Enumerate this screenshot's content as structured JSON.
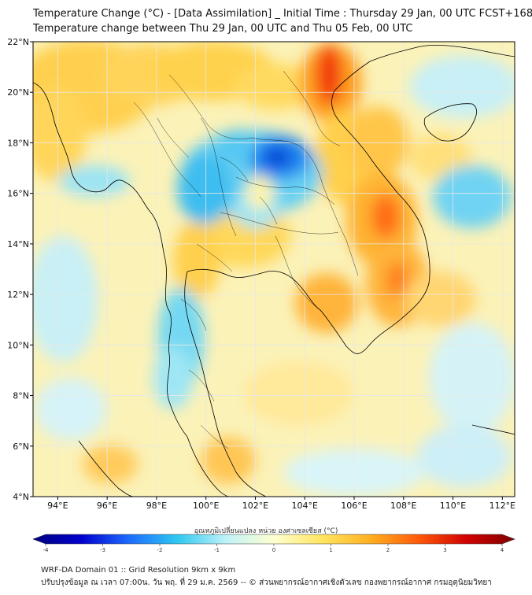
{
  "header": {
    "title": "Temperature Change (°C) - [Data Assimilation] _ Initial Time : Thursday 29 Jan, 00 UTC FCST+168",
    "subtitle": "Temperature change between Thu 29 Jan, 00 UTC and Thu 05 Feb, 00 UTC"
  },
  "map": {
    "lat_labels": [
      "22°N",
      "20°N",
      "18°N",
      "16°N",
      "14°N",
      "12°N",
      "10°N",
      "8°N",
      "6°N",
      "4°N"
    ],
    "lon_labels": [
      "94°E",
      "96°E",
      "98°E",
      "100°E",
      "102°E",
      "104°E",
      "106°E",
      "108°E",
      "110°E",
      "112°E"
    ],
    "lat_values": [
      22,
      20,
      18,
      16,
      14,
      12,
      10,
      8,
      6,
      4
    ],
    "lon_values": [
      94,
      96,
      98,
      100,
      102,
      104,
      106,
      108,
      110,
      112
    ],
    "lat_range": [
      4,
      22
    ],
    "lon_range": [
      93,
      112.5
    ]
  },
  "colorbar": {
    "label": "อุณหภูมิเปลี่ยนแปลง หน่วย องศาเซลเซียส (°C)",
    "ticks": [
      "-4",
      "-3",
      "-2",
      "-1",
      "0",
      "1",
      "2",
      "3",
      "4"
    ],
    "tick_values": [
      -4,
      -3,
      -2,
      -1,
      0,
      1,
      2,
      3,
      4
    ],
    "range": [
      -4,
      4
    ],
    "colors": [
      "#000080",
      "#0000cd",
      "#1e6cff",
      "#2ec8f0",
      "#bff2f9",
      "#ffffd0",
      "#ffe560",
      "#ffb020",
      "#ff5a0a",
      "#d10000",
      "#800000"
    ]
  },
  "footer": {
    "line1": "WRF-DA Domain 01 :: Grid Resolution 9km x 9km",
    "line2": "ปรับปรุงข้อมูล ณ เวลา 07:00น. วัน พฤ. ที่ 29 ม.ค. 2569 -- © ส่วนพยากรณ์อากาศเชิงตัวเลข กองพยากรณ์อากาศ กรมอุตุนิยมวิทยา"
  },
  "palette": {
    "land_line": "#000000",
    "grid_line": "#e8e8e8"
  }
}
